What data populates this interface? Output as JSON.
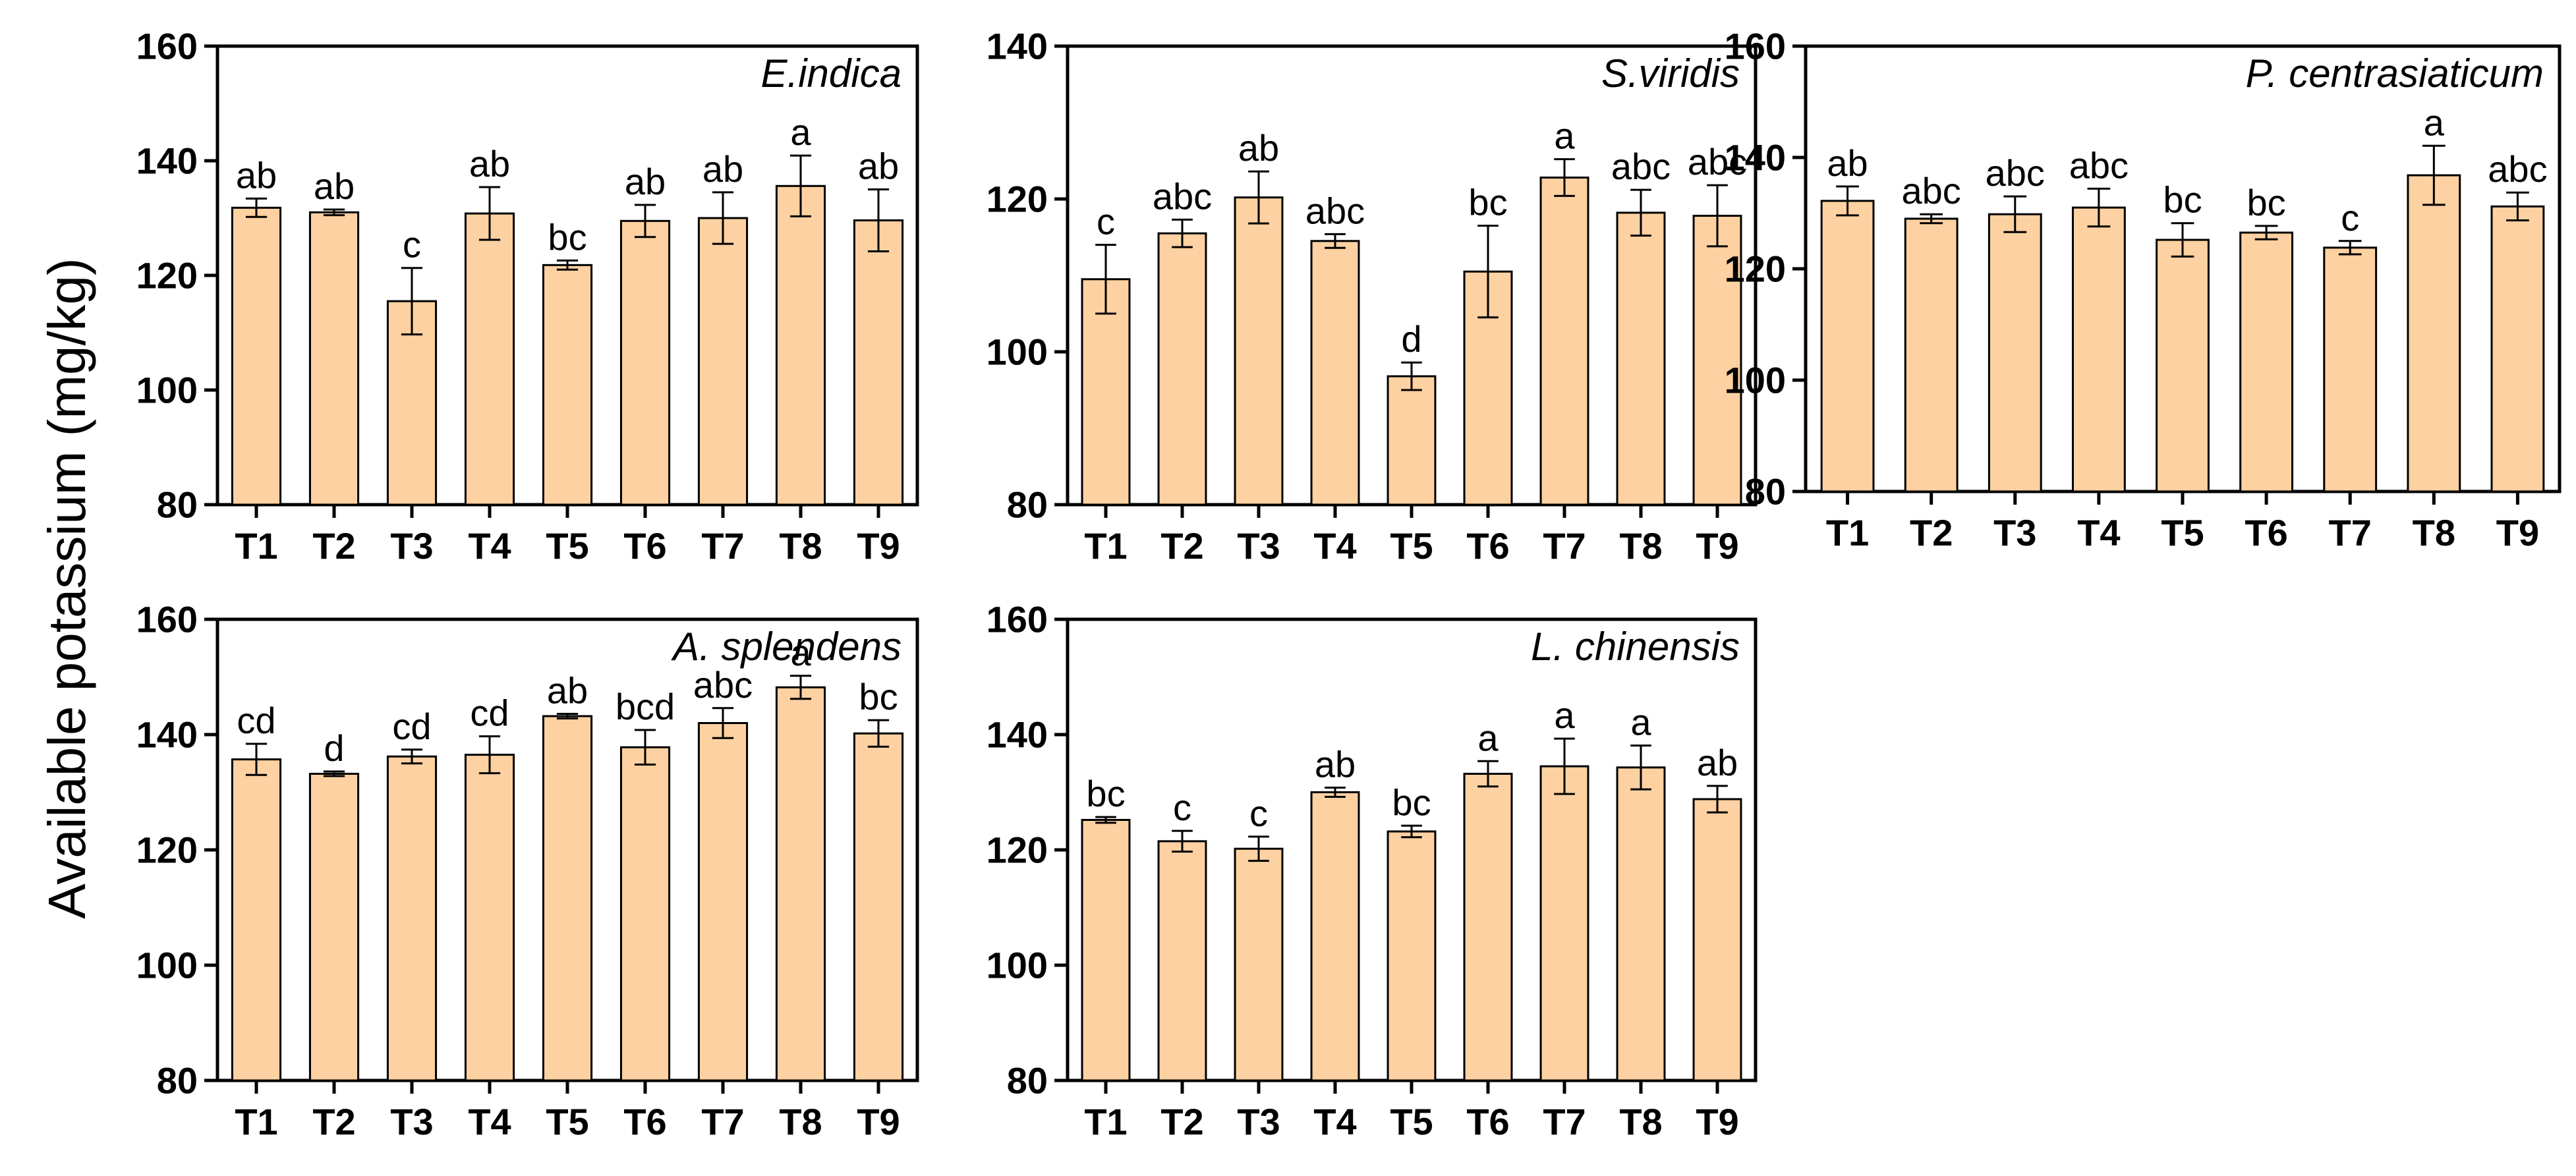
{
  "ylabel": "Available potassium (mg/kg)",
  "colors": {
    "bar_fill": "#FDD1A1",
    "stroke": "#000000"
  },
  "chart_data": [
    {
      "type": "bar",
      "title": "E.indica",
      "categories": [
        "T1",
        "T2",
        "T3",
        "T4",
        "T5",
        "T6",
        "T7",
        "T8",
        "T9"
      ],
      "values": [
        131.8,
        131.0,
        115.5,
        130.8,
        121.8,
        129.5,
        130.0,
        135.6,
        129.6
      ],
      "errors": [
        1.6,
        0.5,
        5.8,
        4.6,
        0.8,
        2.8,
        4.5,
        5.3,
        5.4
      ],
      "letters": [
        "ab",
        "ab",
        "c",
        "ab",
        "bc",
        "ab",
        "ab",
        "a",
        "ab"
      ],
      "ylim": [
        80,
        160
      ],
      "yticks": [
        "80",
        "100",
        "120",
        "140",
        "160"
      ]
    },
    {
      "type": "bar",
      "title": "S.viridis",
      "categories": [
        "T1",
        "T2",
        "T3",
        "T4",
        "T5",
        "T6",
        "T7",
        "T8",
        "T9"
      ],
      "values": [
        109.5,
        115.5,
        120.2,
        114.5,
        96.8,
        110.5,
        122.8,
        118.2,
        117.8
      ],
      "errors": [
        4.5,
        1.8,
        3.4,
        0.9,
        1.8,
        6.0,
        2.4,
        3.0,
        4.0
      ],
      "letters": [
        "c",
        "abc",
        "ab",
        "abc",
        "d",
        "bc",
        "a",
        "abc",
        "abc"
      ],
      "ylim": [
        80,
        140
      ],
      "yticks": [
        "80",
        "100",
        "120",
        "140"
      ]
    },
    {
      "type": "bar",
      "title": "P. centrasiaticum",
      "categories": [
        "T1",
        "T2",
        "T3",
        "T4",
        "T5",
        "T6",
        "T7",
        "T8",
        "T9"
      ],
      "values": [
        132.2,
        129.0,
        129.8,
        131.0,
        125.2,
        126.5,
        123.8,
        136.8,
        131.2
      ],
      "errors": [
        2.6,
        0.8,
        3.2,
        3.4,
        3.0,
        1.2,
        1.2,
        5.3,
        2.5
      ],
      "letters": [
        "ab",
        "abc",
        "abc",
        "abc",
        "bc",
        "bc",
        "c",
        "a",
        "abc"
      ],
      "ylim": [
        80,
        160
      ],
      "yticks": [
        "80",
        "100",
        "120",
        "140",
        "160"
      ]
    },
    {
      "type": "bar",
      "title": "A. splendens",
      "categories": [
        "T1",
        "T2",
        "T3",
        "T4",
        "T5",
        "T6",
        "T7",
        "T8",
        "T9"
      ],
      "values": [
        135.7,
        133.2,
        136.2,
        136.5,
        143.2,
        137.8,
        142.0,
        148.2,
        140.2
      ],
      "errors": [
        2.7,
        0.4,
        1.2,
        3.2,
        0.4,
        3.0,
        2.6,
        2.0,
        2.3
      ],
      "letters": [
        "cd",
        "d",
        "cd",
        "cd",
        "ab",
        "bcd",
        "abc",
        "a",
        "bc"
      ],
      "ylim": [
        80,
        160
      ],
      "yticks": [
        "80",
        "100",
        "120",
        "140",
        "160"
      ]
    },
    {
      "type": "bar",
      "title": "L. chinensis",
      "categories": [
        "T1",
        "T2",
        "T3",
        "T4",
        "T5",
        "T6",
        "T7",
        "T8",
        "T9"
      ],
      "values": [
        125.2,
        121.5,
        120.2,
        130.0,
        123.2,
        133.2,
        134.5,
        134.3,
        128.8
      ],
      "errors": [
        0.5,
        1.8,
        2.1,
        0.8,
        1.0,
        2.2,
        4.8,
        3.8,
        2.3
      ],
      "letters": [
        "bc",
        "c",
        "c",
        "ab",
        "bc",
        "a",
        "a",
        "a",
        "ab"
      ],
      "ylim": [
        80,
        160
      ],
      "yticks": [
        "80",
        "100",
        "120",
        "140",
        "160"
      ]
    }
  ]
}
